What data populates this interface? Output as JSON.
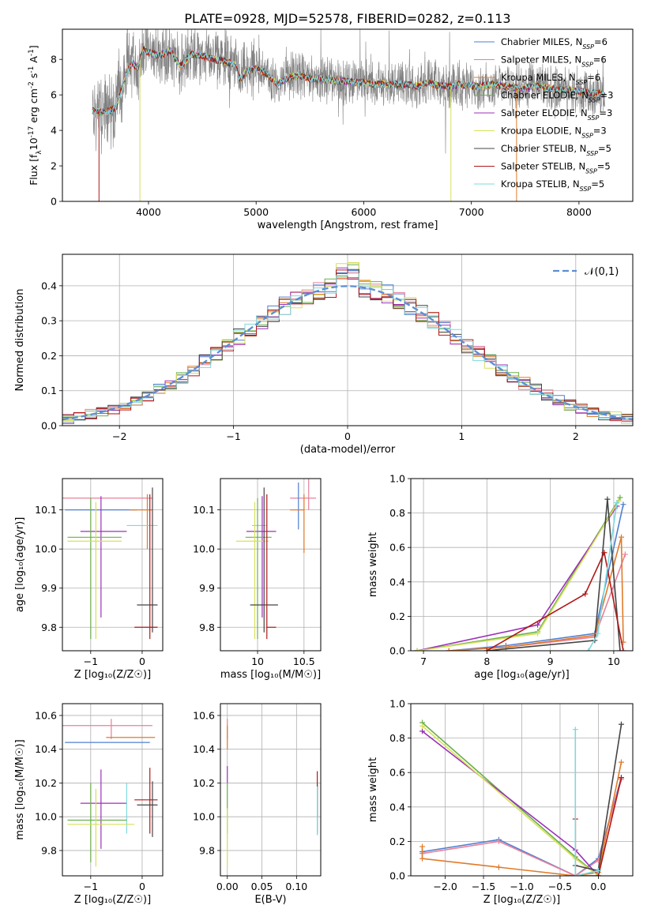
{
  "figure": {
    "title": "PLATE=0928, MJD=52578, FIBERID=0282, z=0.113"
  },
  "colors": {
    "Chabrier MILES": "#4f7fd0",
    "Salpeter MILES": "#e8809a",
    "Kroupa MILES": "#e07b2a",
    "Chabrier ELODIE": "#6ab04c",
    "Salpeter ELODIE": "#9b30b8",
    "Kroupa ELODIE": "#d7e05a",
    "Chabrier STELIB": "#444444",
    "Salpeter STELIB": "#b01818",
    "Kroupa STELIB": "#7fd8dc",
    "data": "#808080",
    "normal": "#5b8ed6"
  },
  "chart_data": [
    {
      "type": "line",
      "id": "spectrum",
      "xlabel": "wavelength [Angstrom, rest frame]",
      "ylabel_prefix": "Flux [f",
      "ylabel_sub": "λ",
      "ylabel_rest": "10",
      "ylabel_sup1": "-17",
      "ylabel_mid": " erg cm",
      "ylabel_sup2": "-2",
      "ylabel_mid2": " s",
      "ylabel_sup3": "-1",
      "ylabel_end": " A",
      "ylabel_sup4": "-1",
      "ylabel_close": "]",
      "xlim": [
        3200,
        8500
      ],
      "ylim": [
        0,
        9.7
      ],
      "xticks": [
        4000,
        5000,
        6000,
        7000,
        8000
      ],
      "yticks": [
        0,
        2,
        4,
        6,
        8
      ],
      "legend_placement": "right",
      "legend": [
        {
          "name": "Chabrier MILES",
          "n": "6"
        },
        {
          "name": "Salpeter MILES",
          "n": "6"
        },
        {
          "name": "Kroupa MILES",
          "n": "6"
        },
        {
          "name": "Chabrier ELODIE",
          "n": "3"
        },
        {
          "name": "Salpeter ELODIE",
          "n": "3"
        },
        {
          "name": "Kroupa ELODIE",
          "n": "3"
        },
        {
          "name": "Chabrier STELIB",
          "n": "5"
        },
        {
          "name": "Salpeter STELIB",
          "n": "5"
        },
        {
          "name": "Kroupa STELIB",
          "n": "5"
        }
      ],
      "legend_n_prefix": "N",
      "legend_n_sub": "SSP",
      "legend_n_eq": "=",
      "continuum": {
        "x": [
          3480,
          3600,
          3700,
          3800,
          3850,
          3900,
          3950,
          4000,
          4100,
          4200,
          4300,
          4400,
          4500,
          4600,
          4700,
          4800,
          4850,
          4900,
          5000,
          5100,
          5200,
          5300,
          5400,
          5500,
          5600,
          5700,
          5800,
          5900,
          6000,
          6100,
          6200,
          6300,
          6400,
          6500,
          6600,
          6700,
          6800,
          6900,
          7000,
          7100,
          7200,
          7300,
          7400,
          7500,
          7600,
          7700,
          7800,
          7900,
          8000,
          8100,
          8200,
          8250
        ],
        "y": [
          5.1,
          5.0,
          5.3,
          7.3,
          7.8,
          7.5,
          8.6,
          8.4,
          8.2,
          8.5,
          7.6,
          8.3,
          8.2,
          8.0,
          7.9,
          7.7,
          6.9,
          7.3,
          7.5,
          7.2,
          6.6,
          7.0,
          7.1,
          6.9,
          6.9,
          6.8,
          6.8,
          6.7,
          6.7,
          6.6,
          6.6,
          6.6,
          6.6,
          6.5,
          6.7,
          6.5,
          6.5,
          6.6,
          6.5,
          6.5,
          6.6,
          6.5,
          6.4,
          6.4,
          6.5,
          6.4,
          6.3,
          6.3,
          6.2,
          6.1,
          6.1,
          6.0
        ]
      }
    },
    {
      "type": "histogram",
      "id": "residuals",
      "xlabel": "(data-model)/error",
      "ylabel": "Normed distribution",
      "xlim": [
        -2.5,
        2.5
      ],
      "ylim": [
        0,
        0.49
      ],
      "xticks": [
        -2,
        -1,
        0,
        1,
        2
      ],
      "yticks": [
        0.0,
        0.1,
        0.2,
        0.3,
        0.4
      ],
      "bin_width": 0.1,
      "legend": "𝒩(0,1)",
      "legend_placement": "top-right"
    },
    {
      "type": "errorbar",
      "id": "age-vs-Z",
      "xlabel": "Z [log₁₀(Z/Z☉)]",
      "ylabel": "age  [log₁₀(age/yr)]",
      "xlim": [
        -1.55,
        0.4
      ],
      "ylim": [
        9.74,
        10.18
      ],
      "xticks": [
        -1,
        0
      ],
      "yticks": [
        9.8,
        9.9,
        10.0,
        10.1
      ],
      "points": [
        {
          "model": "Salpeter MILES",
          "x": -0.6,
          "xerr": [
            0.95,
            0.8
          ],
          "y": 10.13,
          "yerr": [
            0.0,
            0.0
          ]
        },
        {
          "model": "Chabrier MILES",
          "x": -0.2,
          "xerr": [
            1.3,
            0.1
          ],
          "y": 10.1,
          "yerr": [
            0.0,
            0.0
          ]
        },
        {
          "model": "Kroupa MILES",
          "x": 0.1,
          "xerr": [
            0.35,
            0.1
          ],
          "y": 10.1,
          "yerr": [
            0.1,
            0.04
          ]
        },
        {
          "model": "Kroupa STELIB",
          "x": 0.05,
          "xerr": [
            0.35,
            0.25
          ],
          "y": 10.06,
          "yerr": [
            0.0,
            0.0
          ]
        },
        {
          "model": "Salpeter ELODIE",
          "x": -0.8,
          "xerr": [
            0.4,
            0.5
          ],
          "y": 10.045,
          "yerr": [
            0.22,
            0.09
          ]
        },
        {
          "model": "Chabrier ELODIE",
          "x": -1.0,
          "xerr": [
            0.45,
            0.6
          ],
          "y": 10.03,
          "yerr": [
            0.26,
            0.1
          ]
        },
        {
          "model": "Kroupa ELODIE",
          "x": -0.9,
          "xerr": [
            0.55,
            0.5
          ],
          "y": 10.02,
          "yerr": [
            0.25,
            0.1
          ]
        },
        {
          "model": "Chabrier STELIB",
          "x": 0.2,
          "xerr": [
            0.3,
            0.1
          ],
          "y": 9.857,
          "yerr": [
            0.07,
            0.3
          ]
        },
        {
          "model": "Salpeter STELIB",
          "x": 0.15,
          "xerr": [
            0.3,
            0.15
          ],
          "y": 9.8,
          "yerr": [
            0.03,
            0.34
          ]
        }
      ]
    },
    {
      "type": "errorbar",
      "id": "age-vs-mass",
      "xlabel": "mass [log₁₀(M/M☉)]",
      "ylabel": "",
      "xlim": [
        9.6,
        10.68
      ],
      "ylim": [
        9.74,
        10.18
      ],
      "xticks": [
        10.0,
        10.5
      ],
      "yticks": [
        9.8,
        9.9,
        10.0,
        10.1
      ],
      "points": [
        {
          "model": "Salpeter MILES",
          "x": 10.55,
          "xerr": [
            0.2,
            0.08
          ],
          "y": 10.13,
          "yerr": [
            0.03,
            0.05
          ]
        },
        {
          "model": "Chabrier MILES",
          "x": 10.44,
          "xerr": [
            0.0,
            0.0
          ],
          "y": 10.1,
          "yerr": [
            0.05,
            0.07
          ]
        },
        {
          "model": "Kroupa MILES",
          "x": 10.5,
          "xerr": [
            0.15,
            0.0
          ],
          "y": 10.1,
          "yerr": [
            0.11,
            0.04
          ]
        },
        {
          "model": "Kroupa STELIB",
          "x": 10.02,
          "xerr": [
            0.08,
            0.08
          ],
          "y": 10.06,
          "yerr": [
            0.0,
            0.0
          ]
        },
        {
          "model": "Salpeter ELODIE",
          "x": 10.05,
          "xerr": [
            0.17,
            0.15
          ],
          "y": 10.045,
          "yerr": [
            0.22,
            0.09
          ]
        },
        {
          "model": "Chabrier ELODIE",
          "x": 10.0,
          "xerr": [
            0.13,
            0.15
          ],
          "y": 10.03,
          "yerr": [
            0.26,
            0.1
          ]
        },
        {
          "model": "Kroupa ELODIE",
          "x": 9.97,
          "xerr": [
            0.2,
            0.15
          ],
          "y": 10.02,
          "yerr": [
            0.25,
            0.1
          ]
        },
        {
          "model": "Chabrier STELIB",
          "x": 10.07,
          "xerr": [
            0.15,
            0.15
          ],
          "y": 9.857,
          "yerr": [
            0.07,
            0.3
          ]
        },
        {
          "model": "Salpeter STELIB",
          "x": 10.1,
          "xerr": [
            0.0,
            0.1
          ],
          "y": 9.8,
          "yerr": [
            0.03,
            0.34
          ]
        }
      ]
    },
    {
      "type": "line",
      "id": "mass-weight-vs-age",
      "xlabel": "age  [log₁₀(age/yr)]",
      "ylabel": "mass weight",
      "xlim": [
        6.8,
        10.3
      ],
      "ylim": [
        0,
        1.0
      ],
      "xticks": [
        7,
        8,
        9,
        10
      ],
      "yticks": [
        0.0,
        0.2,
        0.4,
        0.6,
        0.8,
        1.0
      ],
      "series": [
        {
          "model": "Chabrier MILES",
          "x": [
            7.4,
            8.3,
            9.7,
            10.15
          ],
          "y": [
            0.0,
            0.03,
            0.1,
            0.85
          ]
        },
        {
          "model": "Salpeter MILES",
          "x": [
            7.4,
            8.3,
            9.7,
            10.18
          ],
          "y": [
            0.0,
            0.02,
            0.08,
            0.56
          ]
        },
        {
          "model": "Kroupa MILES",
          "x": [
            7.4,
            8.3,
            9.7,
            10.12,
            10.15
          ],
          "y": [
            0.0,
            0.02,
            0.09,
            0.66,
            0.05
          ]
        },
        {
          "model": "Chabrier ELODIE",
          "x": [
            6.9,
            8.8,
            10.1
          ],
          "y": [
            0.0,
            0.11,
            0.89
          ]
        },
        {
          "model": "Salpeter ELODIE",
          "x": [
            6.9,
            8.8,
            10.05
          ],
          "y": [
            0.0,
            0.15,
            0.84
          ]
        },
        {
          "model": "Kroupa ELODIE",
          "x": [
            6.9,
            8.8,
            10.08
          ],
          "y": [
            0.0,
            0.1,
            0.87
          ]
        },
        {
          "model": "Chabrier STELIB",
          "x": [
            8.0,
            9.7,
            9.9,
            10.1
          ],
          "y": [
            0.0,
            0.06,
            0.88,
            0.0
          ]
        },
        {
          "model": "Salpeter STELIB",
          "x": [
            8.0,
            9.55,
            9.85,
            10.15
          ],
          "y": [
            0.0,
            0.33,
            0.57,
            0.0
          ]
        },
        {
          "model": "Kroupa STELIB",
          "x": [
            9.6,
            9.75,
            10.05
          ],
          "y": [
            0.0,
            0.1,
            0.86
          ]
        }
      ]
    },
    {
      "type": "errorbar",
      "id": "mass-vs-Z",
      "xlabel": "Z [log₁₀(Z/Z☉)]",
      "ylabel": "mass [log₁₀(M/M☉)]",
      "xlim": [
        -1.55,
        0.4
      ],
      "ylim": [
        9.65,
        10.67
      ],
      "xticks": [
        -1,
        0
      ],
      "yticks": [
        9.8,
        10.0,
        10.2,
        10.4,
        10.6
      ],
      "points": [
        {
          "model": "Salpeter MILES",
          "x": -0.6,
          "xerr": [
            0.95,
            0.8
          ],
          "y": 10.54,
          "yerr": [
            0.08,
            0.04
          ]
        },
        {
          "model": "Kroupa MILES",
          "x": 0.0,
          "xerr": [
            0.7,
            0.25
          ],
          "y": 10.47,
          "yerr": [
            0.0,
            0.0
          ]
        },
        {
          "model": "Chabrier MILES",
          "x": -0.2,
          "xerr": [
            1.3,
            0.35
          ],
          "y": 10.44,
          "yerr": [
            0.0,
            0.0
          ]
        },
        {
          "model": "Salpeter STELIB",
          "x": 0.15,
          "xerr": [
            0.3,
            0.15
          ],
          "y": 10.1,
          "yerr": [
            0.2,
            0.19
          ]
        },
        {
          "model": "Chabrier STELIB",
          "x": 0.2,
          "xerr": [
            0.3,
            0.1
          ],
          "y": 10.07,
          "yerr": [
            0.19,
            0.14
          ]
        },
        {
          "model": "Salpeter ELODIE",
          "x": -0.8,
          "xerr": [
            0.4,
            0.5
          ],
          "y": 10.08,
          "yerr": [
            0.27,
            0.2
          ]
        },
        {
          "model": "Kroupa STELIB",
          "x": -0.3,
          "xerr": [
            0.0,
            0.0
          ],
          "y": 10.04,
          "yerr": [
            0.14,
            0.16
          ]
        },
        {
          "model": "Chabrier ELODIE",
          "x": -1.0,
          "xerr": [
            0.45,
            0.7
          ],
          "y": 9.98,
          "yerr": [
            0.25,
            0.22
          ]
        },
        {
          "model": "Kroupa ELODIE",
          "x": -0.9,
          "xerr": [
            0.55,
            0.75
          ],
          "y": 9.955,
          "yerr": [
            0.25,
            0.21
          ]
        }
      ]
    },
    {
      "type": "errorbar",
      "id": "mass-vs-EBV",
      "xlabel": "E(B-V)",
      "ylabel": "",
      "xlim": [
        -0.01,
        0.135
      ],
      "ylim": [
        9.65,
        10.67
      ],
      "xticks": [
        0.0,
        0.05,
        0.1
      ],
      "xtick_labels": [
        "0.00",
        "0.05",
        "0.10"
      ],
      "yticks": [
        9.8,
        10.0,
        10.2,
        10.4,
        10.6
      ],
      "points": [
        {
          "model": "Salpeter MILES",
          "x": 0.0,
          "xerr": [
            0.0,
            0.0
          ],
          "y": 10.54,
          "yerr": [
            0.08,
            0.04
          ]
        },
        {
          "model": "Kroupa MILES",
          "x": 0.0,
          "xerr": [
            0.0,
            0.0
          ],
          "y": 10.47,
          "yerr": [
            0.07,
            0.07
          ]
        },
        {
          "model": "Chabrier MILES",
          "x": 0.0,
          "xerr": [
            0.0,
            0.0
          ],
          "y": 10.44,
          "yerr": [
            0.0,
            0.0
          ]
        },
        {
          "model": "Salpeter ELODIE",
          "x": 0.0,
          "xerr": [
            0.0,
            0.0
          ],
          "y": 10.2,
          "yerr": [
            0.0,
            0.1
          ]
        },
        {
          "model": "Chabrier ELODIE",
          "x": 0.0,
          "xerr": [
            0.0,
            0.0
          ],
          "y": 10.1,
          "yerr": [
            0.2,
            0.1
          ]
        },
        {
          "model": "Kroupa ELODIE",
          "x": 0.0,
          "xerr": [
            0.0,
            0.0
          ],
          "y": 9.95,
          "yerr": [
            0.25,
            0.1
          ]
        },
        {
          "model": "Salpeter STELIB",
          "x": 0.13,
          "xerr": [
            0.0,
            0.0
          ],
          "y": 10.1,
          "yerr": [
            0.1,
            0.17
          ]
        },
        {
          "model": "Chabrier STELIB",
          "x": 0.13,
          "xerr": [
            0.0,
            0.0
          ],
          "y": 10.05,
          "yerr": [
            0.15,
            0.14
          ]
        },
        {
          "model": "Kroupa STELIB",
          "x": 0.13,
          "xerr": [
            0.0,
            0.0
          ],
          "y": 10.04,
          "yerr": [
            0.15,
            0.14
          ]
        }
      ]
    },
    {
      "type": "line",
      "id": "mass-weight-vs-Z",
      "xlabel": "Z [log₁₀(Z/Z☉)]",
      "ylabel": "mass weight",
      "xlim": [
        -2.45,
        0.45
      ],
      "ylim": [
        0,
        1.0
      ],
      "xticks": [
        -2.0,
        -1.5,
        -1.0,
        -0.5,
        0.0
      ],
      "xtick_labels": [
        "−2.0",
        "−1.5",
        "−1.0",
        "−0.5",
        "0.0"
      ],
      "yticks": [
        0.0,
        0.2,
        0.4,
        0.6,
        0.8,
        1.0
      ],
      "series": [
        {
          "model": "Chabrier MILES",
          "x": [
            -2.3,
            -1.3,
            -0.3,
            0.0,
            0.3
          ],
          "y": [
            0.14,
            0.21,
            0.0,
            0.1,
            0.57
          ]
        },
        {
          "model": "Salpeter MILES",
          "x": [
            -2.3,
            -1.3,
            -0.3,
            0.0,
            0.3
          ],
          "y": [
            0.13,
            0.2,
            0.0,
            0.09,
            0.56
          ]
        },
        {
          "model": "Kroupa MILES",
          "x": [
            -2.3,
            -2.3,
            -1.3,
            -0.3,
            0.0,
            0.3
          ],
          "y": [
            0.17,
            0.1,
            0.05,
            0.0,
            0.02,
            0.66
          ]
        },
        {
          "model": "Chabrier ELODIE",
          "x": [
            -2.3,
            -0.3,
            0.0
          ],
          "y": [
            0.89,
            0.11,
            0.0
          ]
        },
        {
          "model": "Salpeter ELODIE",
          "x": [
            -2.3,
            -0.3,
            0.0
          ],
          "y": [
            0.84,
            0.15,
            0.0
          ]
        },
        {
          "model": "Kroupa ELODIE",
          "x": [
            -2.3,
            -0.3,
            0.0
          ],
          "y": [
            0.87,
            0.1,
            0.0
          ]
        },
        {
          "model": "Chabrier STELIB",
          "x": [
            -0.3,
            0.0,
            0.3
          ],
          "y": [
            0.06,
            0.03,
            0.88
          ]
        },
        {
          "model": "Salpeter STELIB",
          "x": [
            -0.3,
            -0.3,
            0.0,
            0.3
          ],
          "y": [
            0.33,
            0.0,
            0.0,
            0.57
          ]
        },
        {
          "model": "Kroupa STELIB",
          "x": [
            -0.3,
            -0.3,
            0.0
          ],
          "y": [
            0.85,
            0.0,
            0.03
          ]
        }
      ]
    }
  ]
}
